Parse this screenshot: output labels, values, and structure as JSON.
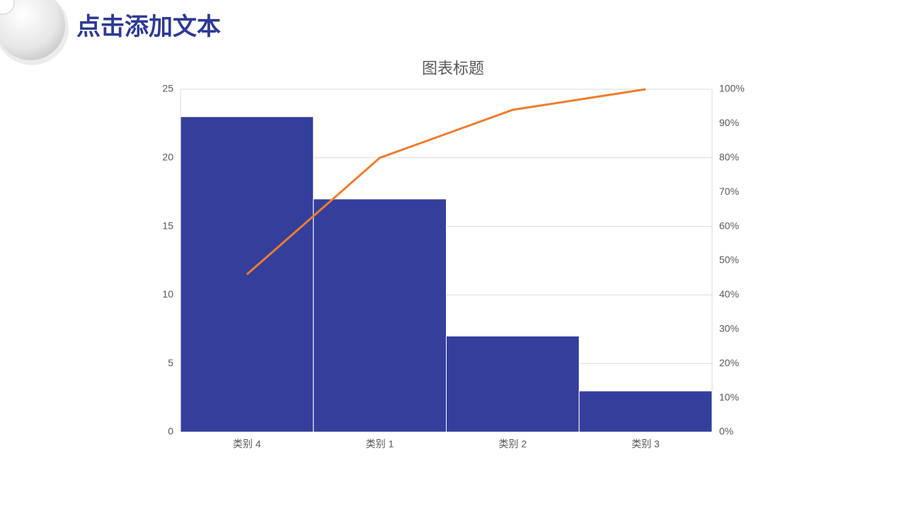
{
  "header": {
    "title": "点击添加文本"
  },
  "chart_data": {
    "type": "bar",
    "title": "图表标题",
    "categories": [
      "类别 4",
      "类别 1",
      "类别 2",
      "类别 3"
    ],
    "series": [
      {
        "type": "bar",
        "color": "#343f9b",
        "values": [
          23,
          17,
          7,
          3
        ]
      },
      {
        "type": "line",
        "color": "#ed7d31",
        "axis": "y2",
        "values": [
          46,
          80,
          94,
          100
        ]
      }
    ],
    "ylim": [
      0,
      25
    ],
    "yticks": [
      0,
      5,
      10,
      15,
      20,
      25
    ],
    "y2lim": [
      0,
      100
    ],
    "y2ticks": [
      {
        "value": 0,
        "label": "0%"
      },
      {
        "value": 10,
        "label": "10%"
      },
      {
        "value": 20,
        "label": "20%"
      },
      {
        "value": 30,
        "label": "30%"
      },
      {
        "value": 40,
        "label": "40%"
      },
      {
        "value": 50,
        "label": "50%"
      },
      {
        "value": 60,
        "label": "60%"
      },
      {
        "value": 70,
        "label": "70%"
      },
      {
        "value": 80,
        "label": "80%"
      },
      {
        "value": 90,
        "label": "90%"
      },
      {
        "value": 100,
        "label": "100%"
      }
    ],
    "grid": true
  }
}
